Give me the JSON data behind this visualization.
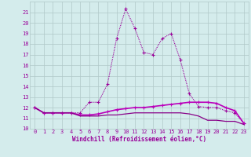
{
  "x": [
    0,
    1,
    2,
    3,
    4,
    5,
    6,
    7,
    8,
    9,
    10,
    11,
    12,
    13,
    14,
    15,
    16,
    17,
    18,
    19,
    20,
    21,
    22,
    23
  ],
  "line1": [
    12.0,
    11.5,
    11.5,
    11.5,
    11.5,
    11.5,
    12.5,
    12.5,
    14.2,
    18.5,
    21.3,
    19.5,
    17.2,
    17.0,
    18.5,
    19.0,
    16.5,
    13.3,
    12.1,
    12.0,
    12.0,
    11.7,
    11.5,
    10.5
  ],
  "line2": [
    12.0,
    11.5,
    11.5,
    11.5,
    11.5,
    11.3,
    11.3,
    11.4,
    11.6,
    11.8,
    11.9,
    12.0,
    12.0,
    12.1,
    12.2,
    12.3,
    12.4,
    12.5,
    12.5,
    12.5,
    12.4,
    12.0,
    11.7,
    10.5
  ],
  "line3": [
    12.0,
    11.5,
    11.5,
    11.5,
    11.5,
    11.2,
    11.2,
    11.2,
    11.3,
    11.3,
    11.4,
    11.5,
    11.5,
    11.5,
    11.5,
    11.5,
    11.5,
    11.4,
    11.2,
    10.8,
    10.8,
    10.7,
    10.7,
    10.4
  ],
  "color1": "#990099",
  "color2": "#bb00bb",
  "color3": "#880088",
  "bg_color": "#d4ecec",
  "grid_color": "#b0c8c8",
  "xlabel": "Windchill (Refroidissement éolien,°C)",
  "ylim": [
    10,
    22
  ],
  "xlim": [
    -0.5,
    23.5
  ],
  "yticks": [
    10,
    11,
    12,
    13,
    14,
    15,
    16,
    17,
    18,
    19,
    20,
    21
  ],
  "xticks": [
    0,
    1,
    2,
    3,
    4,
    5,
    6,
    7,
    8,
    9,
    10,
    11,
    12,
    13,
    14,
    15,
    16,
    17,
    18,
    19,
    20,
    21,
    22,
    23
  ]
}
